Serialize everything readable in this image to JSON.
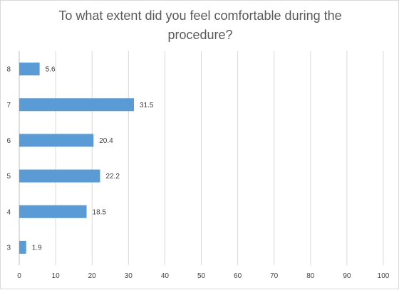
{
  "chart_data": {
    "type": "bar",
    "orientation": "horizontal",
    "title": "To what extent did you feel comfortable during the procedure?",
    "xlabel": "",
    "ylabel": "",
    "categories": [
      "8",
      "7",
      "6",
      "5",
      "4",
      "3"
    ],
    "values": [
      5.6,
      31.5,
      20.4,
      22.2,
      18.5,
      1.9
    ],
    "data_labels": [
      "5.6",
      "31.5",
      "20.4",
      "22.2",
      "18.5",
      "1.9"
    ],
    "xlim": [
      0,
      100
    ],
    "x_ticks": [
      "0",
      "10",
      "20",
      "30",
      "40",
      "50",
      "60",
      "70",
      "80",
      "90",
      "100"
    ],
    "grid": true,
    "legend": "none",
    "colors": {
      "bar": "#5b9bd5",
      "grid": "#d9d9d9",
      "text": "#404040",
      "title": "#595959"
    }
  }
}
